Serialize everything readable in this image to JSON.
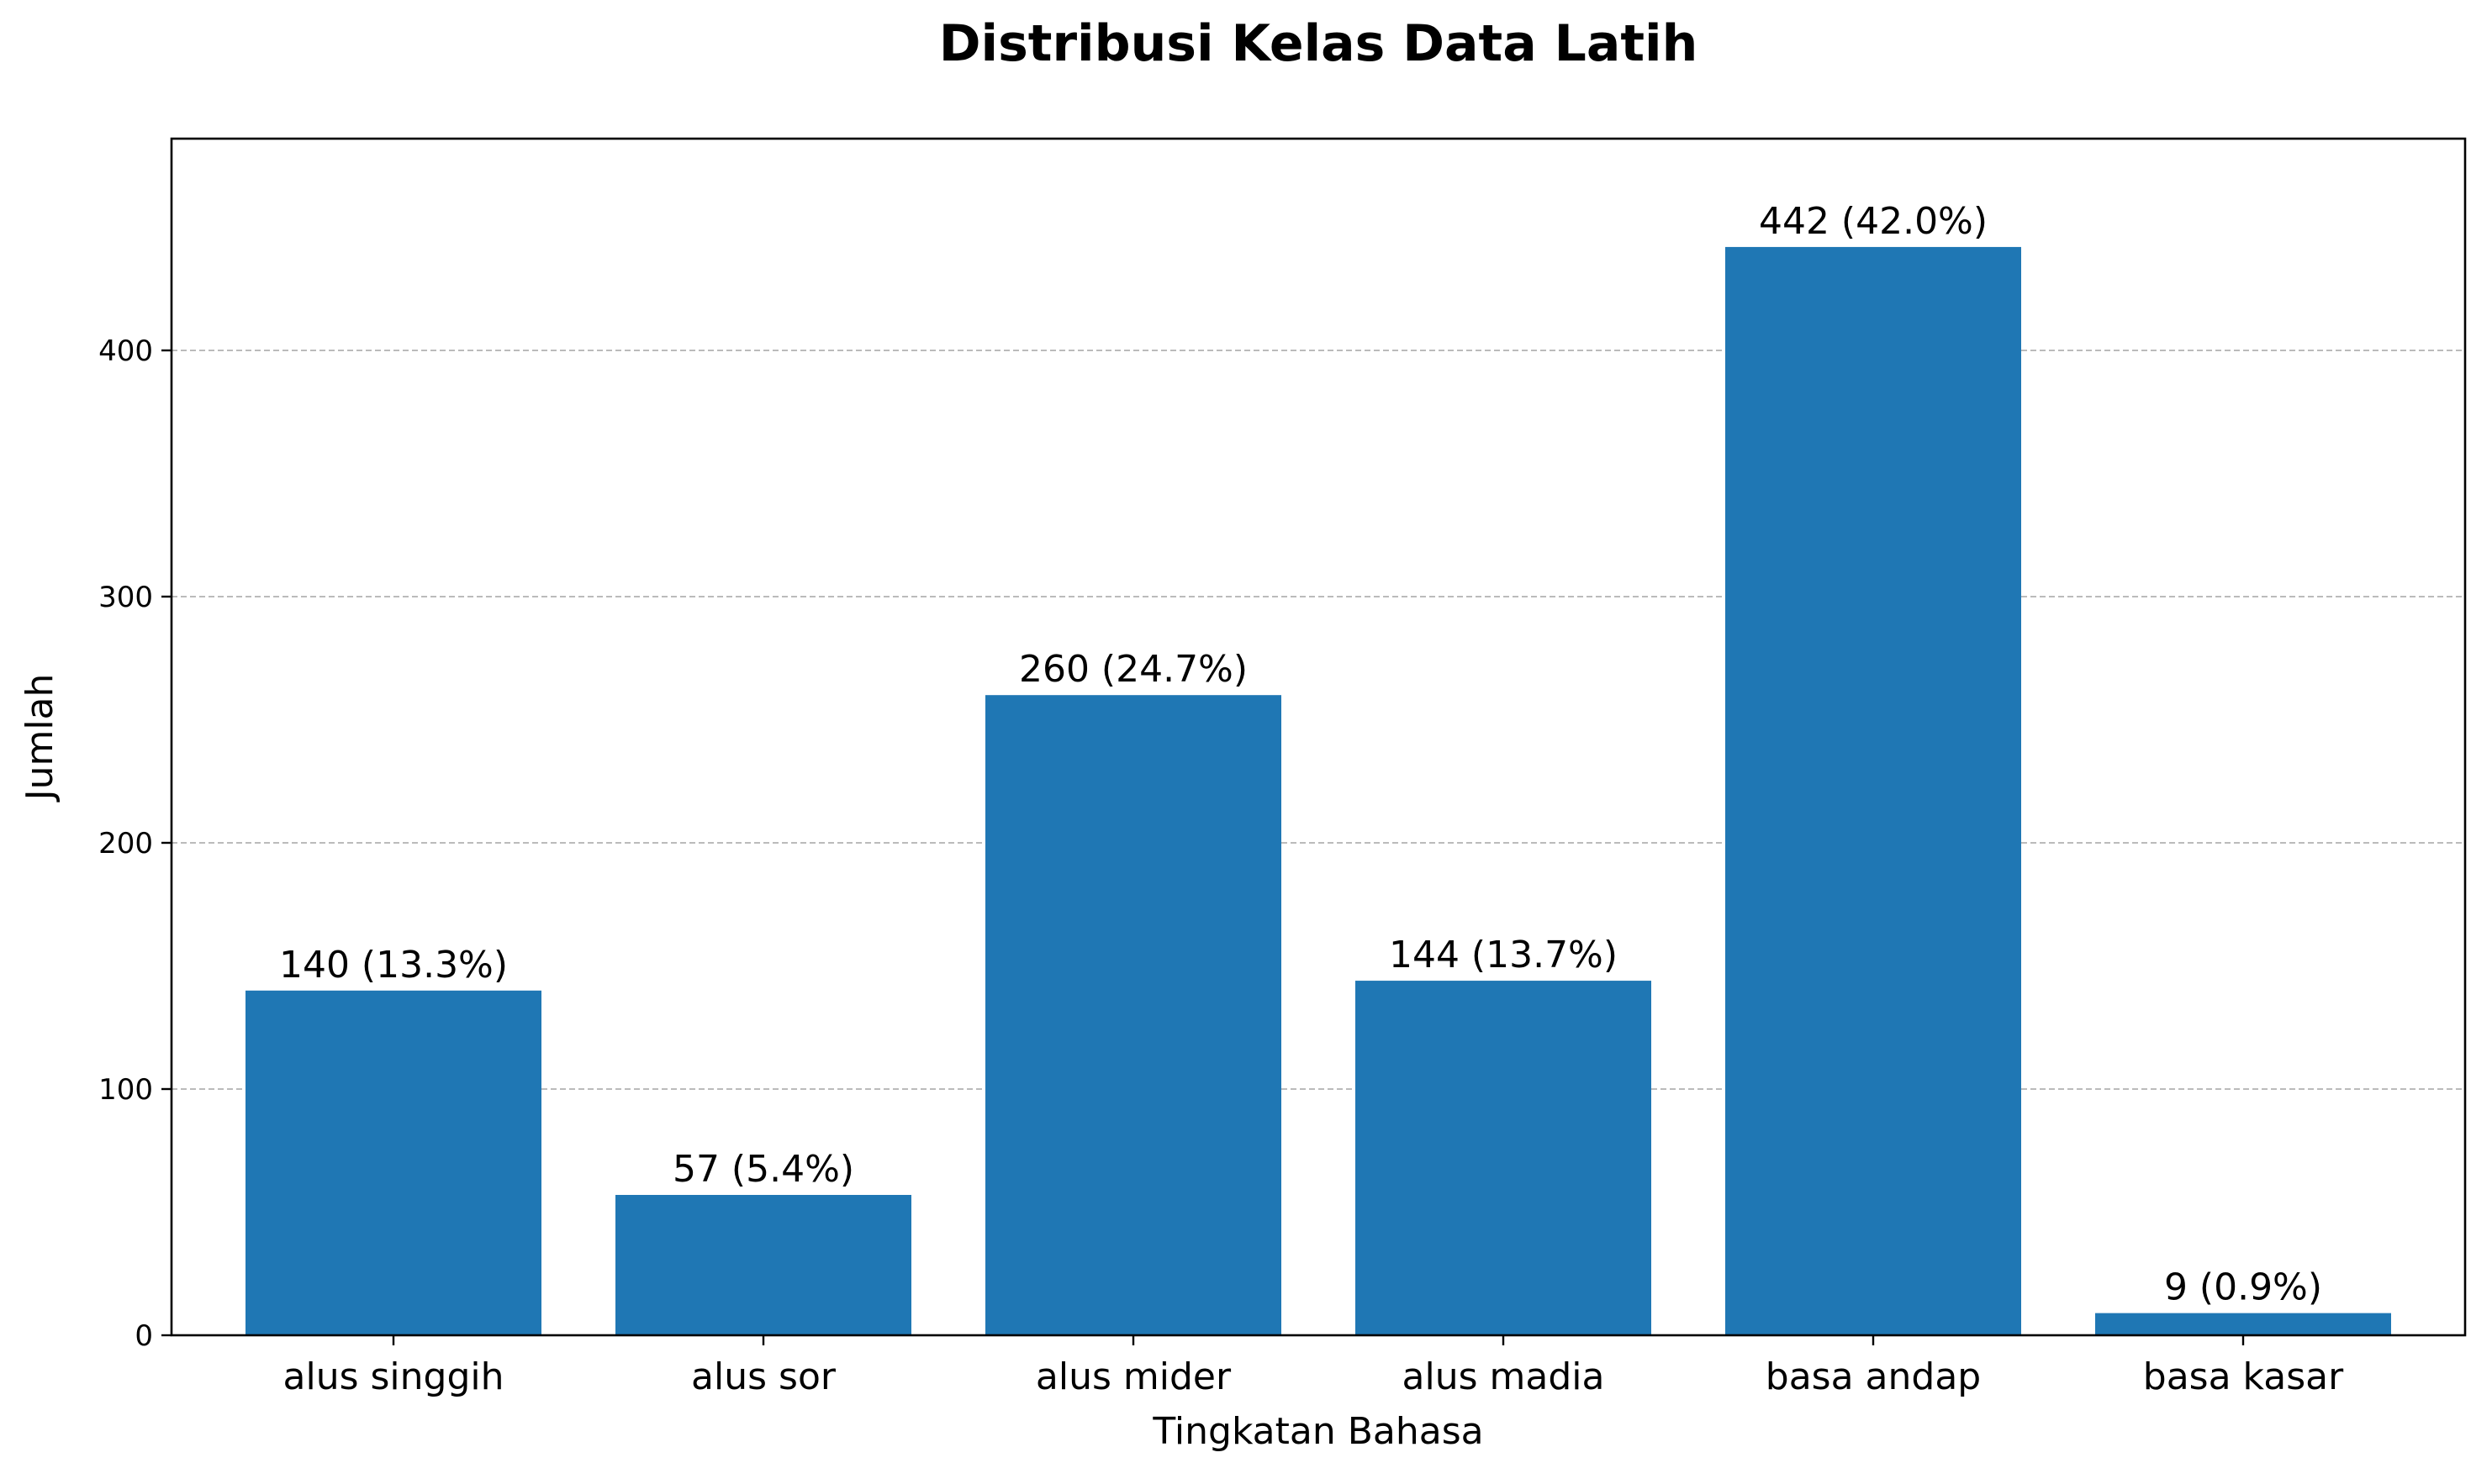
{
  "chart_data": {
    "type": "bar",
    "title": "Distribusi Kelas Data Latih",
    "xlabel": "Tingkatan Bahasa",
    "ylabel": "Jumlah",
    "categories": [
      "alus singgih",
      "alus sor",
      "alus mider",
      "alus madia",
      "basa andap",
      "basa kasar"
    ],
    "values": [
      140,
      57,
      260,
      144,
      442,
      9
    ],
    "data_labels": [
      "140 (13.3%)",
      "57 (5.4%)",
      "260 (24.7%)",
      "144 (13.7%)",
      "442 (42.0%)",
      "9 (0.9%)"
    ],
    "ylim": [
      0,
      486
    ],
    "yticks": [
      0,
      100,
      200,
      300,
      400
    ],
    "grid": "y-dashed",
    "bar_color": "#1f77b4",
    "grid_color": "#b0b0b0"
  }
}
